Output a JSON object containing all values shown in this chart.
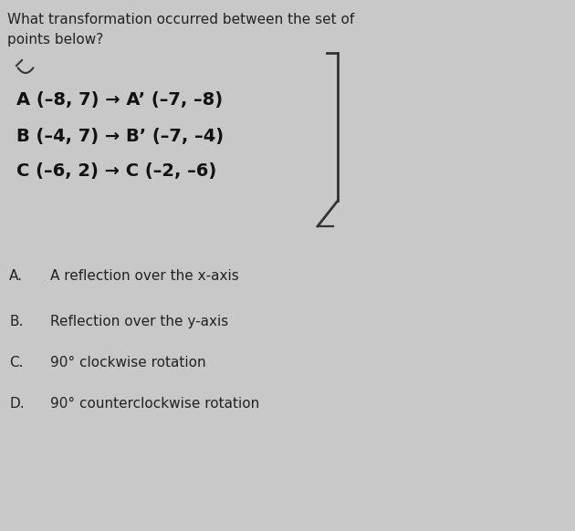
{
  "bg_color": "#c8c8c8",
  "title_line1": "What transformation occurred between the set of",
  "title_line2": "points below?",
  "title_fontsize": 11,
  "title_color": "#222222",
  "mapping_lines": [
    "A (–8, 7) → A’ (–7, –8)",
    "B (–4, 7) → B’ (–7, –4)",
    "C (–6, 2) → C (–2, –6)"
  ],
  "mapping_fontsize": 14,
  "mapping_color": "#111111",
  "choices": [
    {
      "label": "A.",
      "text": "A reflection over the x-axis"
    },
    {
      "label": "B.",
      "text": "Reflection over the y-axis"
    },
    {
      "label": "C.",
      "text": "90° clockwise rotation"
    },
    {
      "label": "D.",
      "text": "90° counterclockwise rotation"
    }
  ],
  "choice_fontsize": 11,
  "choice_color": "#222222",
  "bracket_color": "#333333",
  "bracket_lw": 2.0
}
